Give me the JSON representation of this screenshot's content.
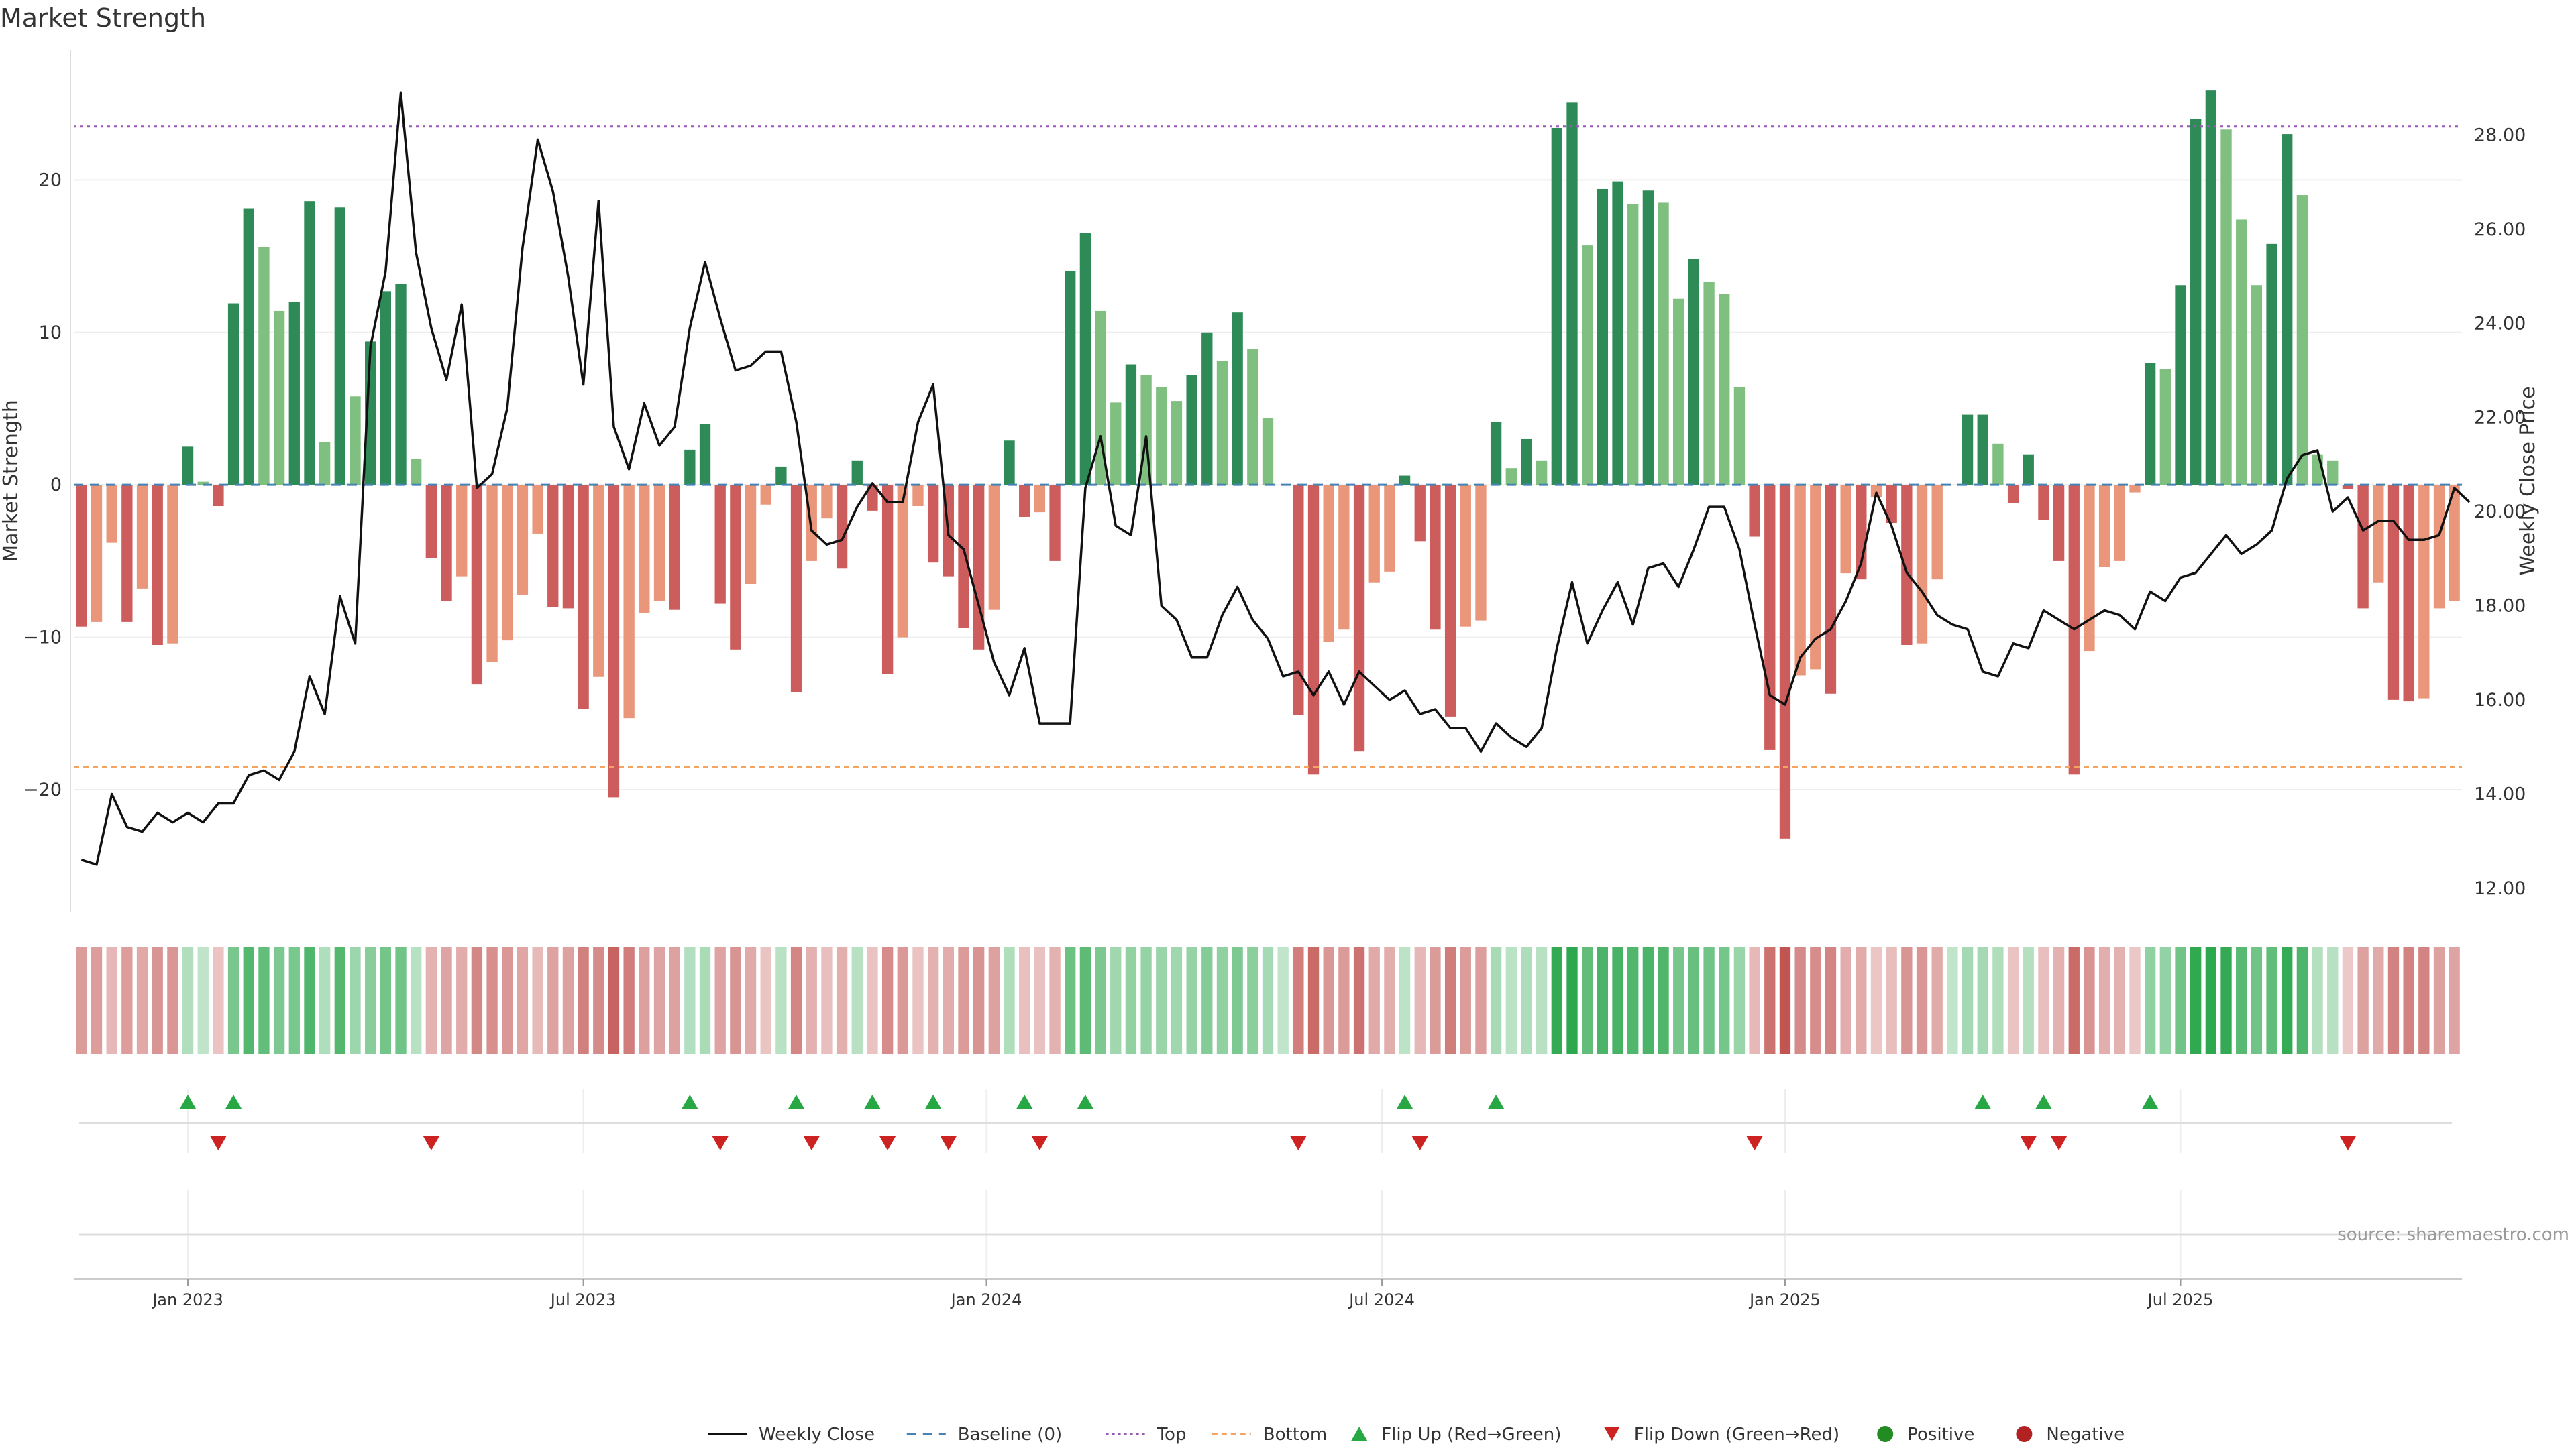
{
  "title": "Market Strength",
  "source": "source: sharemaestro.com",
  "chart_data": {
    "type": "bar",
    "title": "Market Strength",
    "ylabel": "Market Strength",
    "y2label": "Weekly Close Price",
    "ylim": [
      -28,
      28.5
    ],
    "y2lim": [
      11.5,
      29.8
    ],
    "yticks": [
      -20,
      -10,
      0,
      10,
      20
    ],
    "y2ticks": [
      12,
      14,
      16,
      18,
      20,
      22,
      24,
      26,
      28
    ],
    "y2tick_labels": [
      "12.00",
      "14.00",
      "16.00",
      "18.00",
      "20.00",
      "22.00",
      "24.00",
      "26.00",
      "28.00"
    ],
    "xticks": [
      {
        "label": "Jan 2023",
        "week": 7
      },
      {
        "label": "Jul 2023",
        "week": 33
      },
      {
        "label": "Jan 2024",
        "week": 59.5
      },
      {
        "label": "Jul 2024",
        "week": 85.5
      },
      {
        "label": "Jan 2025",
        "week": 112
      },
      {
        "label": "Jul 2025",
        "week": 138
      }
    ],
    "top_line": 23.5,
    "bottom_line": -18.5,
    "grid": true,
    "legend_position": "bottom-center",
    "colors": {
      "pos_strong": "#2e8b57",
      "pos_light": "#7fbf7f",
      "neg_strong": "#cd5c5c",
      "neg_light": "#e9967a",
      "close_line": "#111111",
      "baseline": "#4682b4",
      "top": "#9b59b6",
      "bottom": "#f4a460",
      "flip_up": "#27a844",
      "flip_down": "#cc2222",
      "positive": "#228b22",
      "negative": "#b22222"
    },
    "strength": [
      -9.3,
      -9,
      -3.8,
      -9,
      -6.8,
      -10.5,
      -10.4,
      2.5,
      0.2,
      -1.4,
      11.9,
      18.1,
      15.6,
      11.4,
      12,
      18.6,
      2.8,
      18.2,
      5.8,
      9.4,
      12.7,
      13.2,
      1.7,
      -4.8,
      -7.6,
      -6,
      -13.1,
      -11.6,
      -10.2,
      -7.2,
      -3.2,
      -8,
      -8.1,
      -14.7,
      -12.6,
      -20.5,
      -15.3,
      -8.4,
      -7.6,
      -8.2,
      2.3,
      4,
      -7.8,
      -10.8,
      -6.5,
      -1.3,
      1.2,
      -13.6,
      -5,
      -2.2,
      -5.5,
      1.6,
      -1.7,
      -12.4,
      -10,
      -1.4,
      -5.1,
      -6,
      -9.4,
      -10.8,
      -8.2,
      2.9,
      -2.1,
      -1.8,
      -5,
      14,
      16.5,
      11.4,
      5.4,
      7.9,
      7.2,
      6.4,
      5.5,
      7.2,
      10,
      8.1,
      11.3,
      8.9,
      4.4,
      0,
      -15.1,
      -19,
      -10.3,
      -9.5,
      -17.5,
      -6.4,
      -5.7,
      0.6,
      -3.7,
      -9.5,
      -15.2,
      -9.3,
      -8.9,
      4.1,
      1.1,
      3,
      1.6,
      23.4,
      25.1,
      15.7,
      19.4,
      19.9,
      18.4,
      19.3,
      18.5,
      12.2,
      14.8,
      13.3,
      12.5,
      6.4,
      -3.4,
      -17.4,
      -23.2,
      -12.5,
      -12.1,
      -13.7,
      -5.8,
      -6.2,
      -0.8,
      -2.5,
      -10.5,
      -10.4,
      -6.2,
      0,
      4.6,
      4.6,
      2.7,
      -1.2,
      2,
      -2.3,
      -5,
      -19,
      -10.9,
      -5.4,
      -5,
      -0.5,
      8,
      7.6,
      13.1,
      24,
      25.9,
      23.3,
      17.4,
      13.1,
      15.8,
      23,
      19,
      2,
      1.6,
      -0.3,
      -8.1,
      -6.4,
      -14.1,
      -14.2,
      -14,
      -8.1,
      -7.6
    ],
    "close": [
      12.6,
      12.5,
      14,
      13.3,
      13.2,
      13.6,
      13.4,
      13.6,
      13.4,
      13.8,
      13.8,
      14.4,
      14.5,
      14.3,
      14.9,
      16.5,
      15.7,
      18.2,
      17.2,
      23.5,
      25.1,
      28.9,
      25.5,
      23.9,
      22.8,
      24.4,
      20.5,
      20.8,
      22.2,
      25.6,
      27.9,
      26.8,
      25,
      22.7,
      26.6,
      21.8,
      20.9,
      22.3,
      21.4,
      21.8,
      23.9,
      25.3,
      24.1,
      23,
      23.1,
      23.4,
      23.4,
      21.9,
      19.6,
      19.3,
      19.4,
      20.1,
      20.6,
      20.2,
      20.2,
      21.9,
      22.7,
      19.5,
      19.2,
      18,
      16.8,
      16.1,
      17.1,
      15.5,
      15.5,
      15.5,
      20.5,
      21.6,
      19.7,
      19.5,
      21.6,
      18,
      17.7,
      16.9,
      16.9,
      17.8,
      18.4,
      17.7,
      17.3,
      16.5,
      16.6,
      16.1,
      16.6,
      15.9,
      16.6,
      16.3,
      16,
      16.2,
      15.7,
      15.8,
      15.4,
      15.4,
      14.9,
      15.5,
      15.2,
      15,
      15.4,
      17.1,
      18.5,
      17.2,
      17.9,
      18.5,
      17.6,
      18.8,
      18.9,
      18.4,
      19.2,
      20.1,
      20.1,
      19.2,
      17.6,
      16.1,
      15.9,
      16.9,
      17.3,
      17.5,
      18.1,
      18.9,
      20.4,
      19.7,
      18.7,
      18.3,
      17.8,
      17.6,
      17.5,
      16.6,
      16.5,
      17.2,
      17.1,
      17.9,
      17.7,
      17.5,
      17.7,
      17.9,
      17.8,
      17.5,
      18.3,
      18.1,
      18.6,
      18.7,
      19.1,
      19.5,
      19.1,
      19.3,
      19.6,
      20.7,
      21.2,
      21.3,
      20,
      20.3,
      19.6,
      19.8,
      19.8,
      19.4,
      19.4,
      19.5,
      20.5,
      20.2
    ],
    "flip_up": [
      7,
      10,
      40,
      47,
      52,
      56,
      62,
      66,
      87,
      93,
      125,
      129,
      136
    ],
    "flip_down": [
      9,
      23,
      42,
      48,
      53,
      57,
      63,
      80,
      88,
      110,
      128,
      130,
      149
    ],
    "legend": [
      {
        "label": "Weekly Close",
        "kind": "line"
      },
      {
        "label": "Baseline (0)",
        "kind": "dash"
      },
      {
        "label": "Top",
        "kind": "dot"
      },
      {
        "label": "Bottom",
        "kind": "dashdot"
      },
      {
        "label": "Flip Up (Red→Green)",
        "kind": "tri-up"
      },
      {
        "label": "Flip Down (Green→Red)",
        "kind": "tri-down"
      },
      {
        "label": "Positive",
        "kind": "dot-green"
      },
      {
        "label": "Negative",
        "kind": "dot-red"
      }
    ]
  }
}
